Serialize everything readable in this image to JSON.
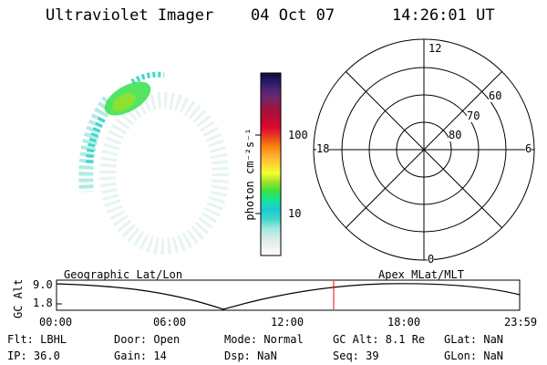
{
  "header": {
    "title": "Ultraviolet Imager",
    "date": "04 Oct 07",
    "time": "14:26:01 UT"
  },
  "colorbar": {
    "label": "photon cm⁻²s⁻¹",
    "ticks": [
      "100",
      "10"
    ],
    "scale": "log",
    "colors": [
      "#ffffff",
      "#f0f0f0",
      "#d0ece9",
      "#9ee6dd",
      "#3fd7c9",
      "#1fc8d8",
      "#16e39b",
      "#35e246",
      "#9be028",
      "#f4ff30",
      "#fed331",
      "#fdad2e",
      "#fb7e0d",
      "#e54323",
      "#e1072c",
      "#bb0e34",
      "#a3123b",
      "#7a2560",
      "#552777",
      "#2a1a66",
      "#0e0d3b"
    ]
  },
  "polar": {
    "labels": {
      "top": "12",
      "bottom": "0",
      "left": "18",
      "right": "6",
      "r60": "60",
      "r70": "70",
      "r80": "80"
    }
  },
  "timeline": {
    "y_label": "GC Alt",
    "y_ticks": [
      "9.0",
      "1.8"
    ],
    "left_caption": "Geographic Lat/Lon",
    "right_caption": "Apex MLat/MLT",
    "x_ticks": [
      "00:00",
      "06:00",
      "12:00",
      "18:00",
      "23:59"
    ],
    "marker_color": "#ff0000"
  },
  "status": {
    "filter": "Flt: LBHL",
    "ip": "IP: 36.0",
    "door": "Door: Open",
    "gain": "Gain: 14",
    "mode": "Mode: Normal",
    "dsp": "Dsp:    NaN",
    "gc_alt": "GC Alt: 8.1 Re",
    "seq": "Seq: 39",
    "glat": "GLat:    NaN",
    "glon": "GLon:    NaN"
  }
}
